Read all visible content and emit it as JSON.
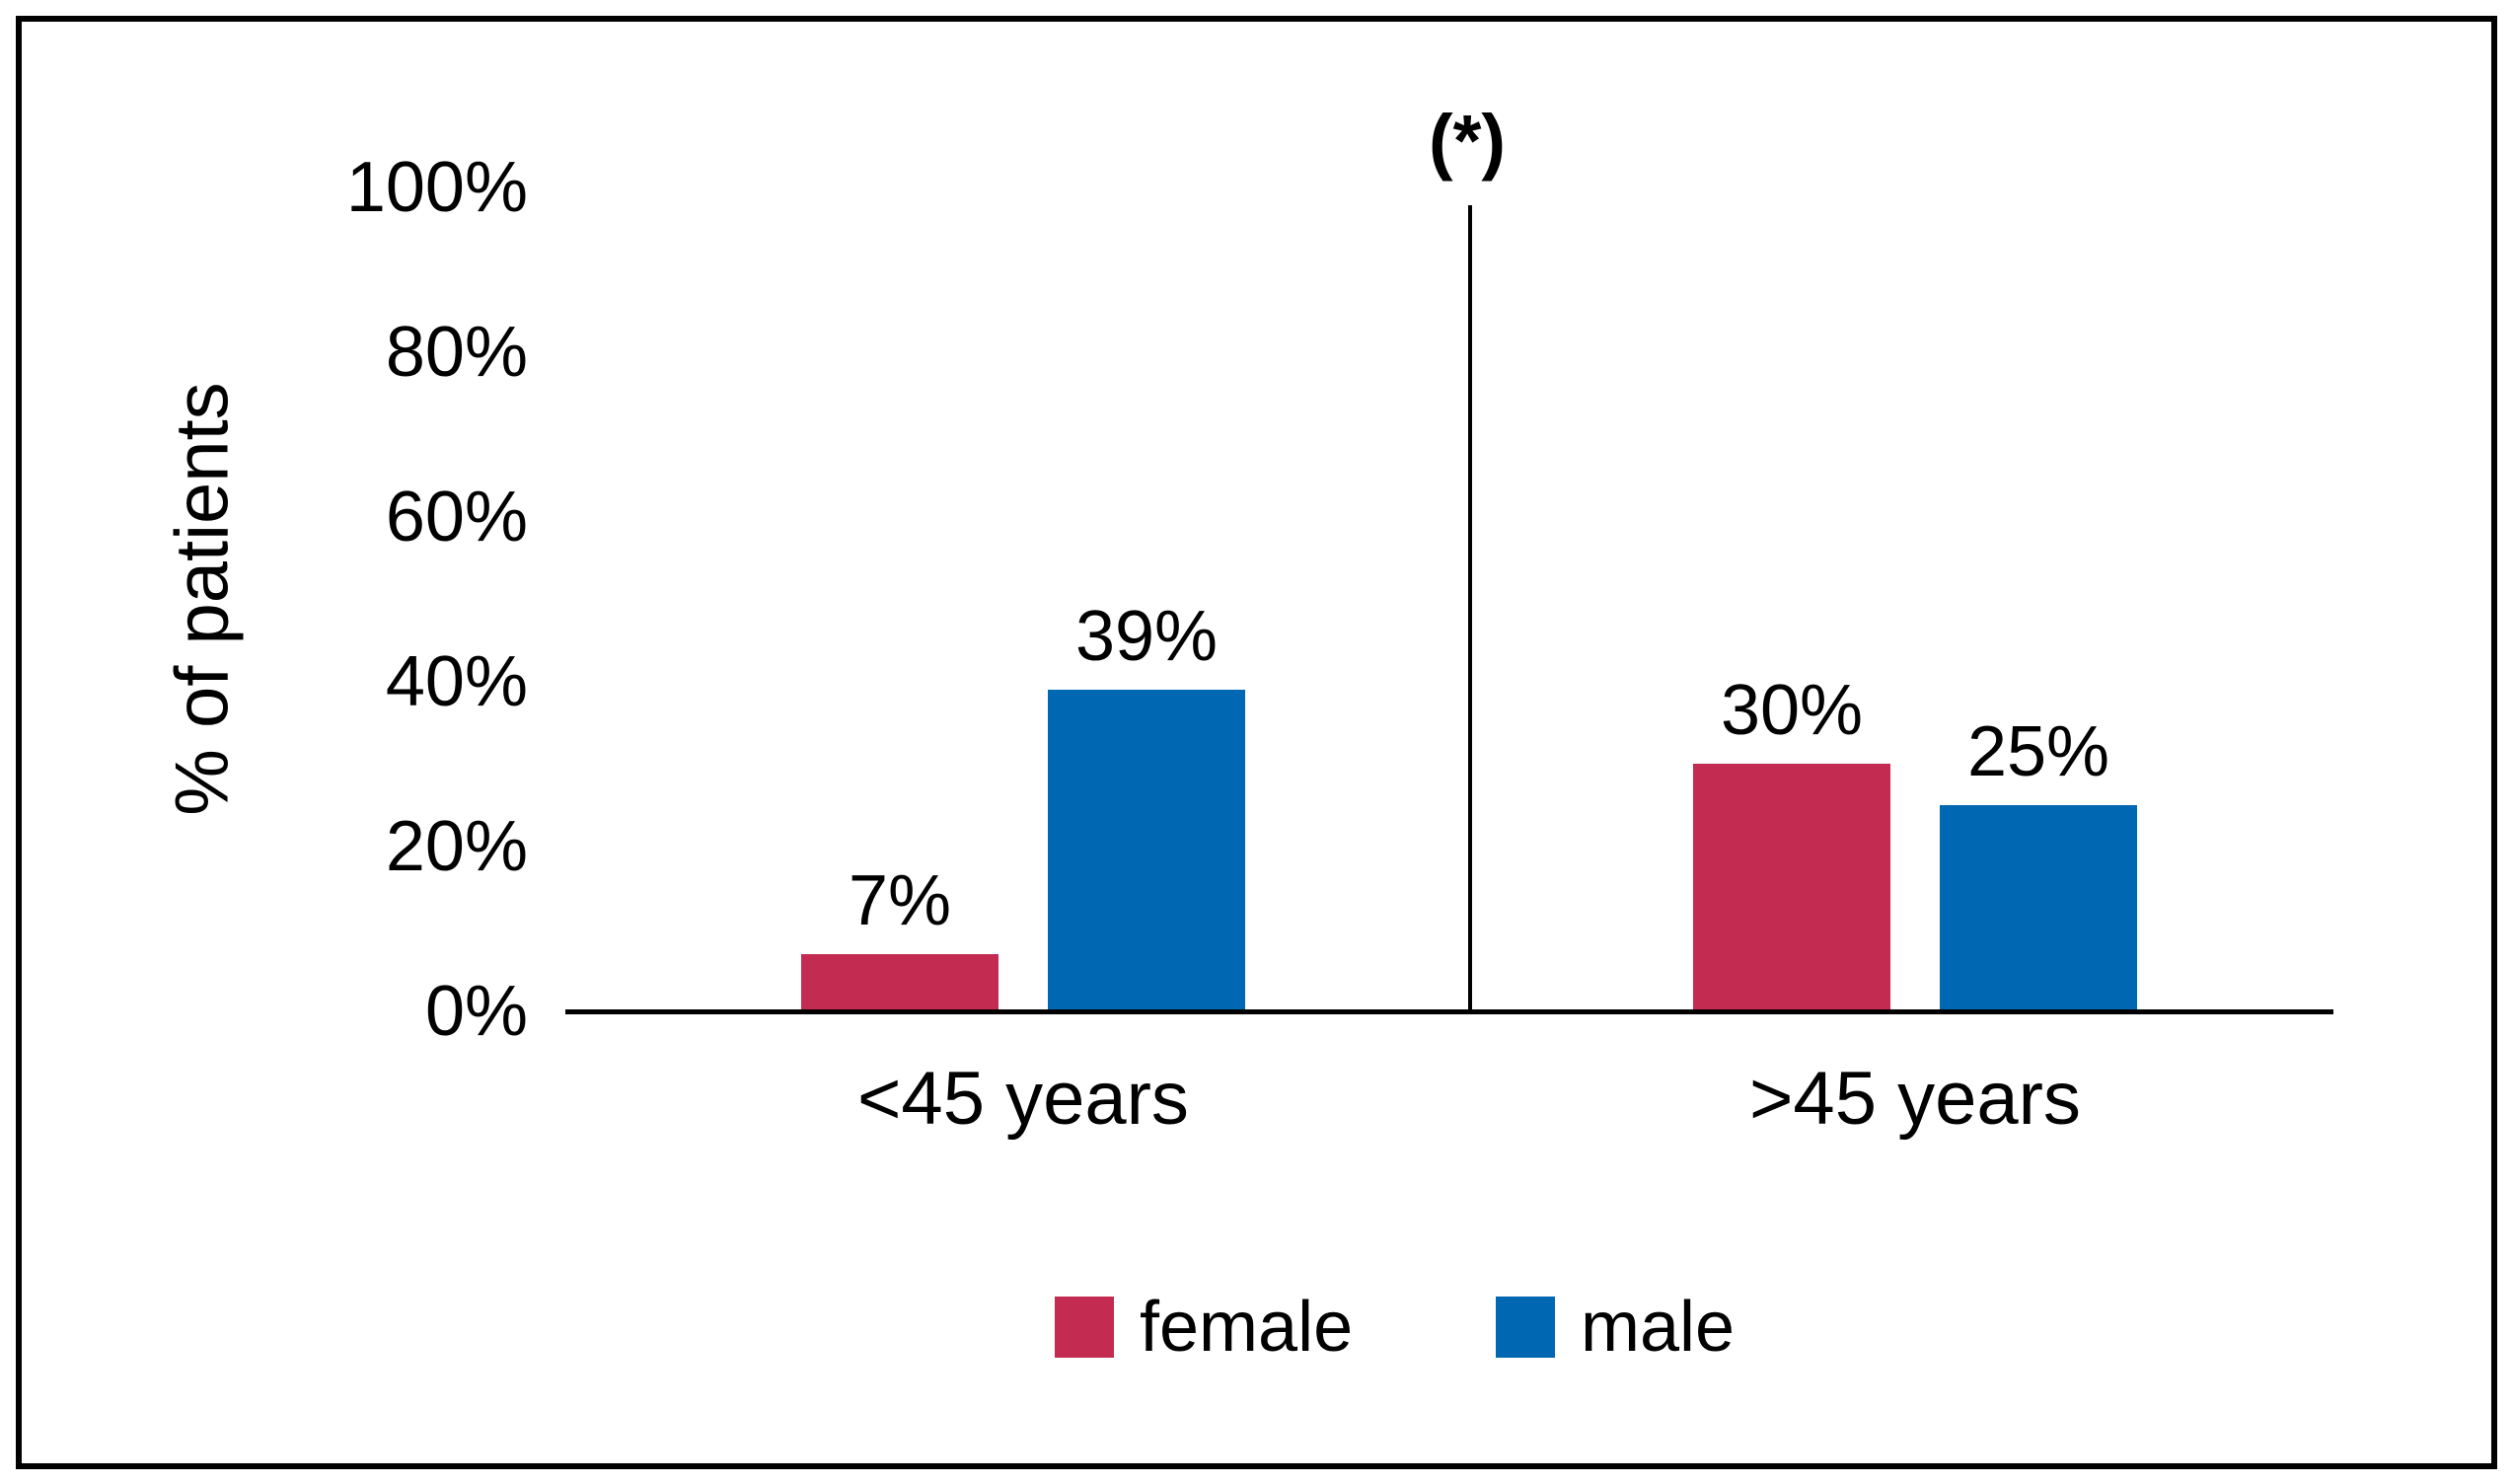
{
  "chart_data": {
    "type": "bar",
    "title": "",
    "ylabel": "% of patients",
    "xlabel": "",
    "ylim": [
      0,
      100
    ],
    "grid": false,
    "legend_position": "bottom",
    "annotation": "(*)",
    "categories": [
      "<45 years",
      ">45 years"
    ],
    "yticks": [
      {
        "value": 0,
        "label": "0%"
      },
      {
        "value": 20,
        "label": "20%"
      },
      {
        "value": 40,
        "label": "40%"
      },
      {
        "value": 60,
        "label": "60%"
      },
      {
        "value": 80,
        "label": "80%"
      },
      {
        "value": 100,
        "label": "100%"
      }
    ],
    "series": [
      {
        "name": "female",
        "color": "#C32B51",
        "values": [
          7,
          30
        ],
        "labels": [
          "7%",
          "30%"
        ]
      },
      {
        "name": "male",
        "color": "#0067B2",
        "values": [
          39,
          25
        ],
        "labels": [
          "39%",
          "25%"
        ]
      }
    ],
    "legend": {
      "items": [
        {
          "label": "female",
          "color": "#C32B51"
        },
        {
          "label": "male",
          "color": "#0067B2"
        }
      ]
    },
    "colors": {
      "female": "#C32B51",
      "male": "#0067B2",
      "axis": "#000000",
      "text": "#000000",
      "background": "#FFFFFF"
    }
  }
}
